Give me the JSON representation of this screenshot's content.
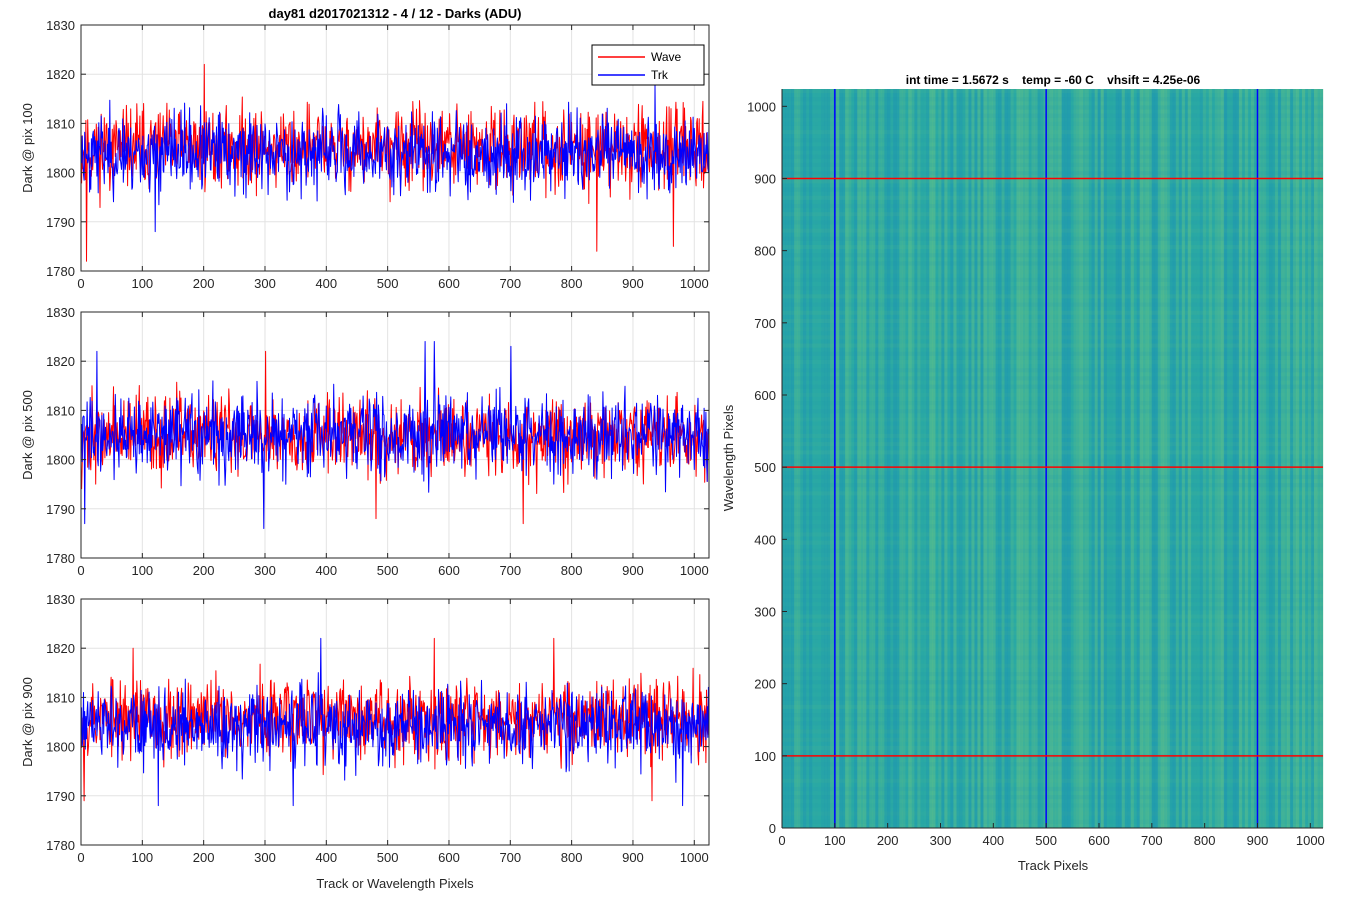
{
  "figure_title": "day81 d2017021312 - 4 / 12 - Darks (ADU)",
  "chart_data": [
    {
      "type": "line",
      "ylabel": "Dark @ pix 100",
      "xlabel": "",
      "xlim": [
        0,
        1024
      ],
      "ylim": [
        1780,
        1830
      ],
      "xticks": [
        0,
        100,
        200,
        300,
        400,
        500,
        600,
        700,
        800,
        900,
        1000
      ],
      "yticks": [
        1780,
        1790,
        1800,
        1810,
        1820,
        1830
      ],
      "grid": true,
      "legend": {
        "placement": "top-right",
        "entries": [
          "Wave",
          "Trk"
        ]
      },
      "series": [
        {
          "name": "Wave",
          "color": "#ff0000",
          "mean": 1805,
          "spread": 4,
          "seed": 11,
          "peaks": [
            [
              8,
              1782
            ],
            [
              200,
              1822
            ],
            [
              840,
              1784
            ],
            [
              965,
              1785
            ],
            [
              600,
              1812
            ]
          ]
        },
        {
          "name": "Trk",
          "color": "#0000ff",
          "mean": 1804,
          "spread": 4,
          "seed": 23,
          "peaks": [
            [
              120,
              1788
            ],
            [
              935,
              1818
            ],
            [
              420,
              1811
            ]
          ]
        }
      ]
    },
    {
      "type": "line",
      "ylabel": "Dark @ pix 500",
      "xlabel": "",
      "xlim": [
        0,
        1024
      ],
      "ylim": [
        1780,
        1830
      ],
      "xticks": [
        0,
        100,
        200,
        300,
        400,
        500,
        600,
        700,
        800,
        900,
        1000
      ],
      "yticks": [
        1780,
        1790,
        1800,
        1810,
        1820,
        1830
      ],
      "grid": true,
      "series": [
        {
          "name": "Wave",
          "color": "#ff0000",
          "mean": 1805,
          "spread": 4,
          "seed": 37,
          "peaks": [
            [
              0,
              1794
            ],
            [
              480,
              1788
            ],
            [
              720,
              1787
            ],
            [
              300,
              1822
            ]
          ]
        },
        {
          "name": "Trk",
          "color": "#0000ff",
          "mean": 1805,
          "spread": 4,
          "seed": 41,
          "peaks": [
            [
              25,
              1822
            ],
            [
              297,
              1786
            ],
            [
              560,
              1824
            ],
            [
              575,
              1824
            ],
            [
              5,
              1787
            ],
            [
              700,
              1823
            ]
          ]
        }
      ]
    },
    {
      "type": "line",
      "ylabel": "Dark @ pix 900",
      "xlabel": "Track or Wavelength Pixels",
      "xlim": [
        0,
        1024
      ],
      "ylim": [
        1780,
        1830
      ],
      "xticks": [
        0,
        100,
        200,
        300,
        400,
        500,
        600,
        700,
        800,
        900,
        1000
      ],
      "yticks": [
        1780,
        1790,
        1800,
        1810,
        1820,
        1830
      ],
      "grid": true,
      "series": [
        {
          "name": "Wave",
          "color": "#ff0000",
          "mean": 1806,
          "spread": 4,
          "seed": 53,
          "peaks": [
            [
              84,
              1820
            ],
            [
              575,
              1822
            ],
            [
              770,
              1822
            ],
            [
              4,
              1789
            ],
            [
              930,
              1789
            ]
          ]
        },
        {
          "name": "Trk",
          "color": "#0000ff",
          "mean": 1804,
          "spread": 4,
          "seed": 61,
          "peaks": [
            [
              390,
              1822
            ],
            [
              345,
              1788
            ],
            [
              125,
              1788
            ],
            [
              980,
              1788
            ]
          ]
        }
      ]
    },
    {
      "type": "heatmap",
      "title": "int time = 1.5672 s    temp = -60 C    vhsift = 4.25e-06",
      "xlabel": "Track Pixels",
      "ylabel": "Wavelength Pixels",
      "xlim": [
        0,
        1024
      ],
      "ylim": [
        0,
        1024
      ],
      "xticks": [
        0,
        100,
        200,
        300,
        400,
        500,
        600,
        700,
        800,
        900,
        1000
      ],
      "yticks": [
        0,
        100,
        200,
        300,
        400,
        500,
        600,
        700,
        800,
        900,
        1000
      ],
      "colors": {
        "base": "#2aa9a4",
        "light": "#5fc08a",
        "dark": "#1e95b2"
      },
      "vertical_lines": {
        "values": [
          100,
          500,
          900
        ],
        "color": "#0000ff"
      },
      "horizontal_lines": {
        "values": [
          100,
          500,
          900
        ],
        "color": "#ff0000"
      }
    }
  ]
}
